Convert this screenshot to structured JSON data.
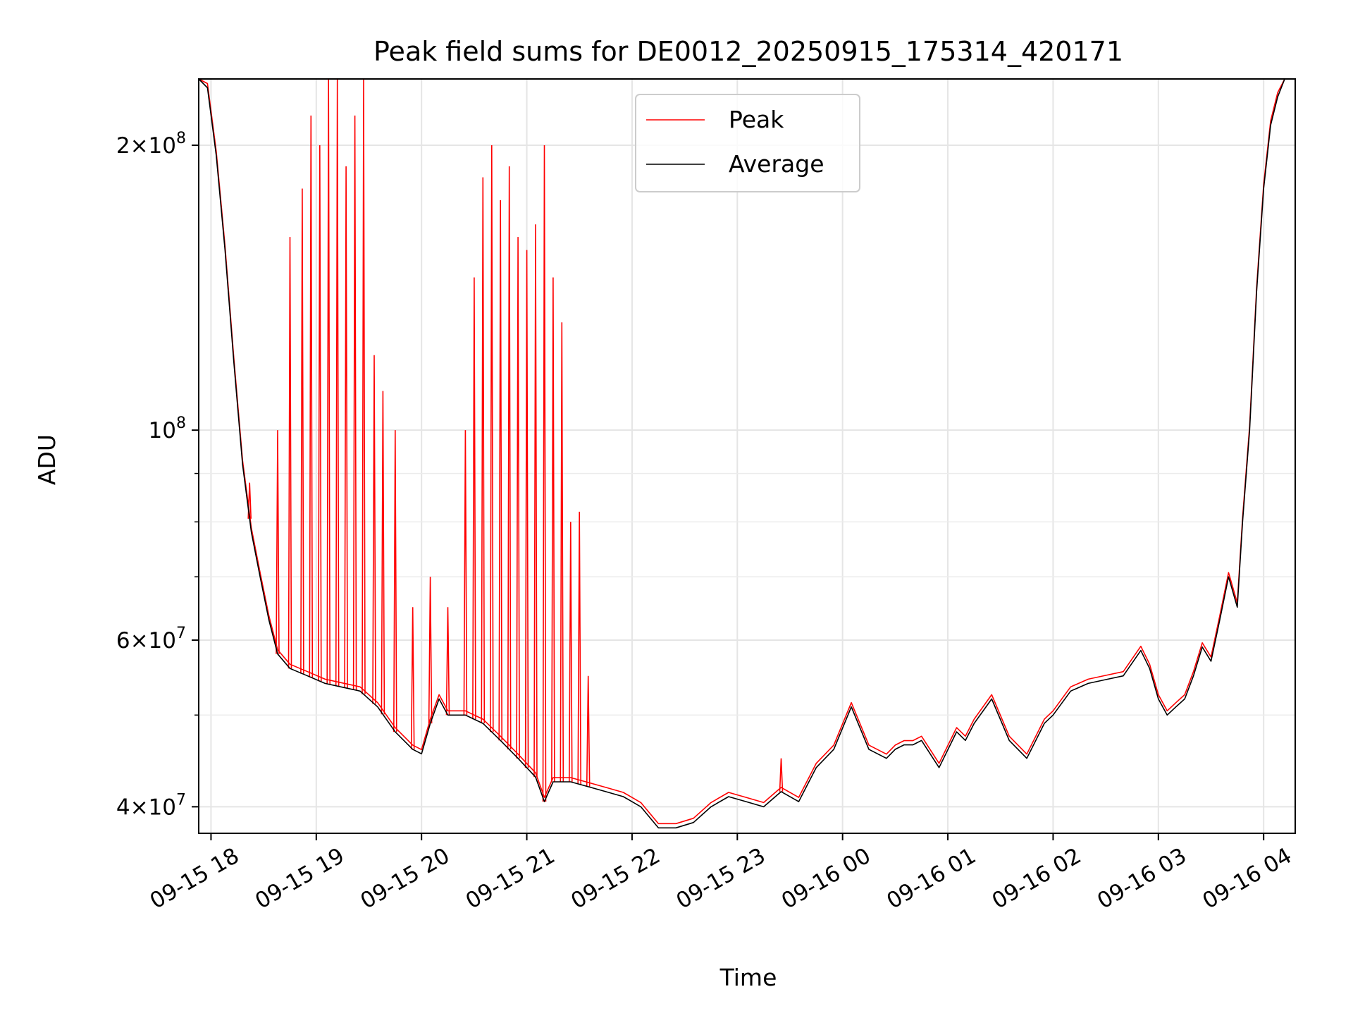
{
  "chart_data": {
    "type": "line",
    "title": "Peak field sums for DE0012_20250915_175314_420171",
    "xlabel": "Time",
    "ylabel": "ADU",
    "y_scale": "log",
    "ylim": [
      37500000,
      235000000
    ],
    "xlim": [
      "2025-09-15 17:53",
      "2025-09-16 04:18"
    ],
    "grid": true,
    "legend_position": "top-center",
    "x_ticks": [
      {
        "value": "2025-09-15 18:00",
        "label": "09-15 18"
      },
      {
        "value": "2025-09-15 19:00",
        "label": "09-15 19"
      },
      {
        "value": "2025-09-15 20:00",
        "label": "09-15 20"
      },
      {
        "value": "2025-09-15 21:00",
        "label": "09-15 21"
      },
      {
        "value": "2025-09-15 22:00",
        "label": "09-15 22"
      },
      {
        "value": "2025-09-15 23:00",
        "label": "09-15 23"
      },
      {
        "value": "2025-09-16 00:00",
        "label": "09-16 00"
      },
      {
        "value": "2025-09-16 01:00",
        "label": "09-16 01"
      },
      {
        "value": "2025-09-16 02:00",
        "label": "09-16 02"
      },
      {
        "value": "2025-09-16 03:00",
        "label": "09-16 03"
      },
      {
        "value": "2025-09-16 04:00",
        "label": "09-16 04"
      }
    ],
    "y_major_ticks": [
      {
        "value": 40000000,
        "base": "4",
        "exp": "7"
      },
      {
        "value": 60000000,
        "base": "6",
        "exp": "7"
      },
      {
        "value": 100000000,
        "base": "",
        "exp": "8"
      },
      {
        "value": 200000000,
        "base": "2",
        "exp": "8"
      }
    ],
    "y_minor_ticks": [
      50000000,
      70000000,
      80000000,
      90000000
    ],
    "series": [
      {
        "name": "Average",
        "color": "#000000",
        "x": [
          "2025-09-15 17:53",
          "2025-09-15 17:58",
          "2025-09-15 18:03",
          "2025-09-15 18:08",
          "2025-09-15 18:13",
          "2025-09-15 18:18",
          "2025-09-15 18:23",
          "2025-09-15 18:28",
          "2025-09-15 18:33",
          "2025-09-15 18:38",
          "2025-09-15 18:45",
          "2025-09-15 18:55",
          "2025-09-15 19:05",
          "2025-09-15 19:15",
          "2025-09-15 19:25",
          "2025-09-15 19:35",
          "2025-09-15 19:45",
          "2025-09-15 19:55",
          "2025-09-15 20:00",
          "2025-09-15 20:05",
          "2025-09-15 20:10",
          "2025-09-15 20:15",
          "2025-09-15 20:25",
          "2025-09-15 20:35",
          "2025-09-15 20:45",
          "2025-09-15 20:55",
          "2025-09-15 21:05",
          "2025-09-15 21:10",
          "2025-09-15 21:15",
          "2025-09-15 21:25",
          "2025-09-15 21:35",
          "2025-09-15 21:45",
          "2025-09-15 21:55",
          "2025-09-15 22:05",
          "2025-09-15 22:15",
          "2025-09-15 22:25",
          "2025-09-15 22:35",
          "2025-09-15 22:45",
          "2025-09-15 22:55",
          "2025-09-15 23:05",
          "2025-09-15 23:15",
          "2025-09-15 23:25",
          "2025-09-15 23:35",
          "2025-09-15 23:45",
          "2025-09-15 23:55",
          "2025-09-16 00:05",
          "2025-09-16 00:15",
          "2025-09-16 00:25",
          "2025-09-16 00:30",
          "2025-09-16 00:35",
          "2025-09-16 00:40",
          "2025-09-16 00:45",
          "2025-09-16 00:55",
          "2025-09-16 01:05",
          "2025-09-16 01:10",
          "2025-09-16 01:15",
          "2025-09-16 01:25",
          "2025-09-16 01:35",
          "2025-09-16 01:45",
          "2025-09-16 01:55",
          "2025-09-16 02:00",
          "2025-09-16 02:10",
          "2025-09-16 02:20",
          "2025-09-16 02:30",
          "2025-09-16 02:40",
          "2025-09-16 02:50",
          "2025-09-16 02:55",
          "2025-09-16 03:00",
          "2025-09-16 03:05",
          "2025-09-16 03:10",
          "2025-09-16 03:15",
          "2025-09-16 03:20",
          "2025-09-16 03:25",
          "2025-09-16 03:30",
          "2025-09-16 03:35",
          "2025-09-16 03:40",
          "2025-09-16 03:45",
          "2025-09-16 03:48",
          "2025-09-16 03:52",
          "2025-09-16 03:56",
          "2025-09-16 04:00",
          "2025-09-16 04:04",
          "2025-09-16 04:08",
          "2025-09-16 04:12",
          "2025-09-16 04:18"
        ],
        "values": [
          235000000,
          230000000,
          195000000,
          155000000,
          118000000,
          92000000,
          78000000,
          70000000,
          63000000,
          58000000,
          56000000,
          55000000,
          54000000,
          53500000,
          53000000,
          51000000,
          48000000,
          46000000,
          45500000,
          49000000,
          52000000,
          50000000,
          50000000,
          49000000,
          47000000,
          45000000,
          43000000,
          40500000,
          42500000,
          42500000,
          42000000,
          41500000,
          41000000,
          40000000,
          38000000,
          38000000,
          38500000,
          40000000,
          41000000,
          40500000,
          40000000,
          41500000,
          40500000,
          44000000,
          46000000,
          51000000,
          46000000,
          45000000,
          46000000,
          46500000,
          46500000,
          47000000,
          44000000,
          48000000,
          47000000,
          49000000,
          52000000,
          47000000,
          45000000,
          49000000,
          50000000,
          53000000,
          54000000,
          54500000,
          55000000,
          58500000,
          56000000,
          52000000,
          50000000,
          51000000,
          52000000,
          55000000,
          59000000,
          57000000,
          63000000,
          70000000,
          65000000,
          80000000,
          100000000,
          140000000,
          180000000,
          210000000,
          225000000,
          235000000,
          235000000
        ]
      },
      {
        "name": "Peak",
        "color": "#ff0000",
        "baseline": "follows the Average series with slightly higher values",
        "spikes": [
          {
            "x": "2025-09-15 18:22",
            "value": 88000000
          },
          {
            "x": "2025-09-15 18:38",
            "value": 100000000
          },
          {
            "x": "2025-09-15 18:45",
            "value": 160000000
          },
          {
            "x": "2025-09-15 18:52",
            "value": 180000000
          },
          {
            "x": "2025-09-15 18:57",
            "value": 215000000
          },
          {
            "x": "2025-09-15 19:02",
            "value": 200000000
          },
          {
            "x": "2025-09-15 19:07",
            "value": 235000000
          },
          {
            "x": "2025-09-15 19:12",
            "value": 235000000
          },
          {
            "x": "2025-09-15 19:17",
            "value": 190000000
          },
          {
            "x": "2025-09-15 19:22",
            "value": 215000000
          },
          {
            "x": "2025-09-15 19:27",
            "value": 235000000
          },
          {
            "x": "2025-09-15 19:33",
            "value": 120000000
          },
          {
            "x": "2025-09-15 19:38",
            "value": 110000000
          },
          {
            "x": "2025-09-15 19:45",
            "value": 100000000
          },
          {
            "x": "2025-09-15 19:55",
            "value": 65000000
          },
          {
            "x": "2025-09-15 20:05",
            "value": 70000000
          },
          {
            "x": "2025-09-15 20:15",
            "value": 65000000
          },
          {
            "x": "2025-09-15 20:25",
            "value": 100000000
          },
          {
            "x": "2025-09-15 20:30",
            "value": 145000000
          },
          {
            "x": "2025-09-15 20:35",
            "value": 185000000
          },
          {
            "x": "2025-09-15 20:40",
            "value": 200000000
          },
          {
            "x": "2025-09-15 20:45",
            "value": 175000000
          },
          {
            "x": "2025-09-15 20:50",
            "value": 190000000
          },
          {
            "x": "2025-09-15 20:55",
            "value": 160000000
          },
          {
            "x": "2025-09-15 21:00",
            "value": 155000000
          },
          {
            "x": "2025-09-15 21:05",
            "value": 165000000
          },
          {
            "x": "2025-09-15 21:10",
            "value": 200000000
          },
          {
            "x": "2025-09-15 21:15",
            "value": 145000000
          },
          {
            "x": "2025-09-15 21:20",
            "value": 130000000
          },
          {
            "x": "2025-09-15 21:25",
            "value": 80000000
          },
          {
            "x": "2025-09-15 21:30",
            "value": 82000000
          },
          {
            "x": "2025-09-15 21:35",
            "value": 55000000
          },
          {
            "x": "2025-09-15 23:25",
            "value": 45000000
          }
        ]
      }
    ]
  }
}
